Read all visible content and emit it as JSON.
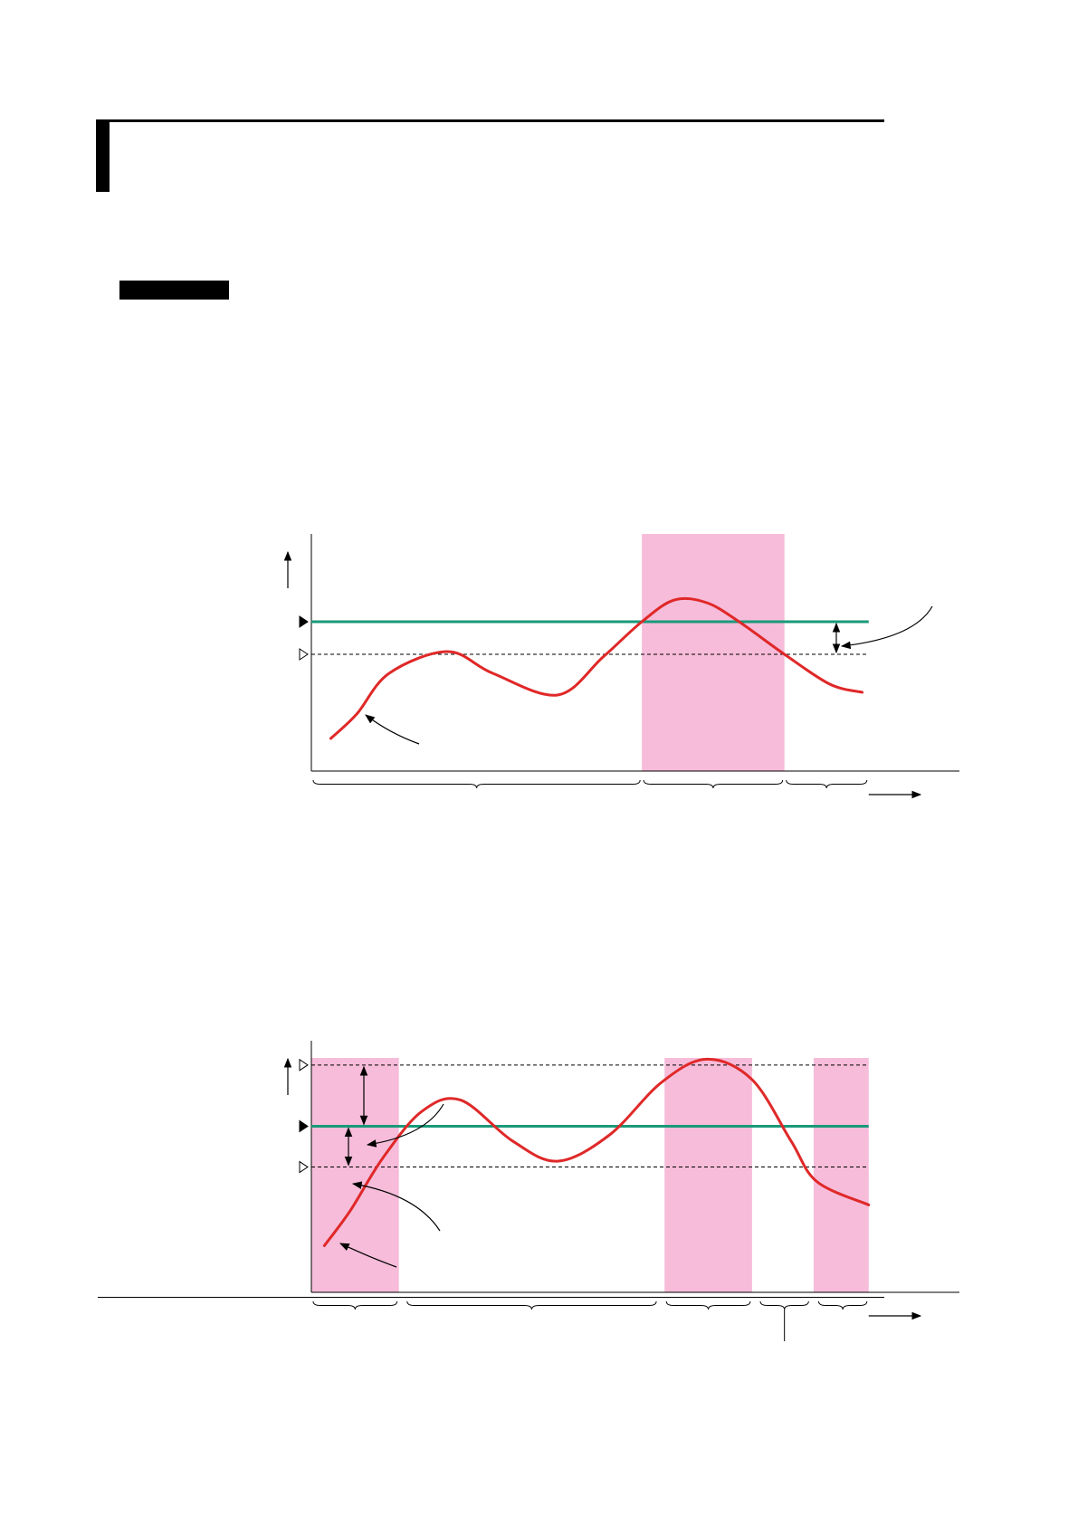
{
  "page": {
    "header_rule": true,
    "section_heading_box": true,
    "footer_rule": true
  },
  "colors": {
    "setpoint_line": "#1a9a7a",
    "pv_curve": "#e02828",
    "on_band": "#f6bcd9",
    "dashed": "#000000",
    "ink": "#000000"
  },
  "diagram_1": {
    "description_text": "",
    "on_zones": [
      [
        0.51,
        0.73
      ]
    ],
    "segments": [
      [
        0.0,
        0.51
      ],
      [
        0.51,
        0.73
      ],
      [
        0.73,
        0.86
      ]
    ],
    "setpoint_level": 0.55,
    "threshold_level": 0.43,
    "curve": [
      [
        0.03,
        0.12
      ],
      [
        0.07,
        0.21
      ],
      [
        0.12,
        0.36
      ],
      [
        0.21,
        0.44
      ],
      [
        0.28,
        0.36
      ],
      [
        0.38,
        0.28
      ],
      [
        0.45,
        0.42
      ],
      [
        0.51,
        0.55
      ],
      [
        0.56,
        0.63
      ],
      [
        0.61,
        0.62
      ],
      [
        0.66,
        0.55
      ],
      [
        0.73,
        0.43
      ],
      [
        0.8,
        0.32
      ],
      [
        0.85,
        0.29
      ]
    ]
  },
  "diagram_2": {
    "description_text": "",
    "on_zones": [
      [
        0.0,
        0.135
      ],
      [
        0.545,
        0.68
      ],
      [
        0.775,
        0.86
      ]
    ],
    "segments": [
      [
        0.0,
        0.135
      ],
      [
        0.145,
        0.535
      ],
      [
        0.545,
        0.68
      ],
      [
        0.69,
        0.77
      ],
      [
        0.78,
        0.86
      ]
    ],
    "setpoint_level": 0.57,
    "upper_threshold_level": 0.78,
    "lower_threshold_level": 0.43,
    "curve": [
      [
        0.02,
        0.16
      ],
      [
        0.06,
        0.28
      ],
      [
        0.11,
        0.46
      ],
      [
        0.17,
        0.62
      ],
      [
        0.23,
        0.66
      ],
      [
        0.31,
        0.52
      ],
      [
        0.38,
        0.45
      ],
      [
        0.46,
        0.54
      ],
      [
        0.54,
        0.72
      ],
      [
        0.61,
        0.8
      ],
      [
        0.68,
        0.73
      ],
      [
        0.74,
        0.52
      ],
      [
        0.78,
        0.38
      ],
      [
        0.86,
        0.3
      ]
    ]
  }
}
